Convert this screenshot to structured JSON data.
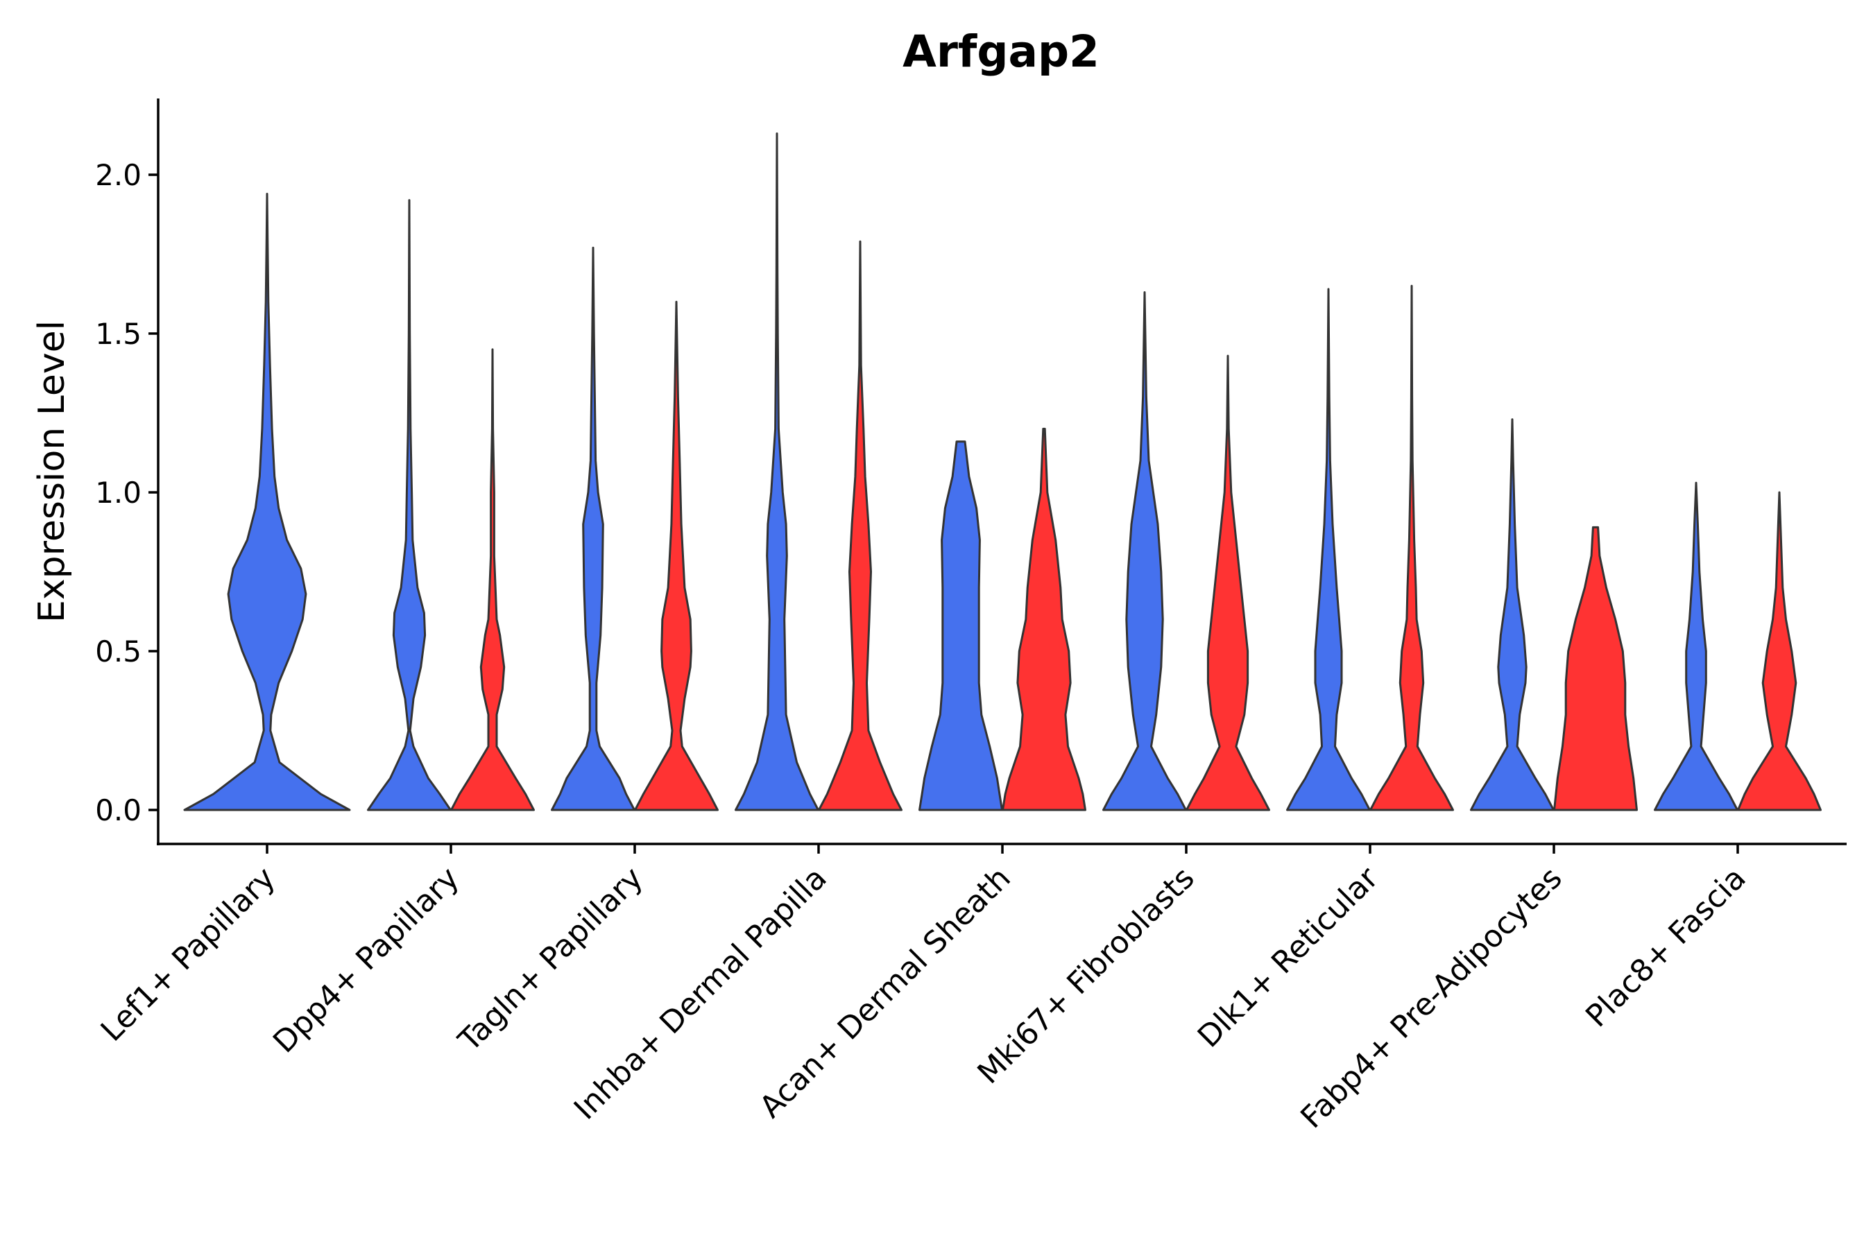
{
  "chart_data": {
    "type": "violin",
    "title": "Arfgap2",
    "xlabel": "",
    "ylabel": "Expression Level",
    "ylim": [
      -0.1,
      2.25
    ],
    "yticks": [
      0.0,
      0.5,
      1.0,
      1.5,
      2.0
    ],
    "ytick_labels": [
      "0.0",
      "0.5",
      "1.0",
      "1.5",
      "2.0"
    ],
    "categories": [
      "Lef1+ Papillary",
      "Dpp4+ Papillary",
      "Tagln+ Papillary",
      "Inhba+ Dermal Papilla",
      "Acan+ Dermal Sheath",
      "Mki67+ Fibroblasts",
      "Dlk1+ Reticular",
      "Fabp4+ Pre-Adipocytes",
      "Plac8+ Fascia"
    ],
    "series": [
      {
        "name": "group-1",
        "color": "#4571ee",
        "max": [
          1.94,
          1.92,
          1.77,
          2.13,
          1.16,
          1.63,
          1.64,
          1.23,
          1.03
        ]
      },
      {
        "name": "group-2",
        "color": "#ff3333",
        "max": [
          null,
          1.45,
          1.6,
          1.79,
          1.2,
          1.43,
          1.65,
          0.89,
          1.0
        ]
      }
    ],
    "grid": false,
    "legend": "none"
  }
}
